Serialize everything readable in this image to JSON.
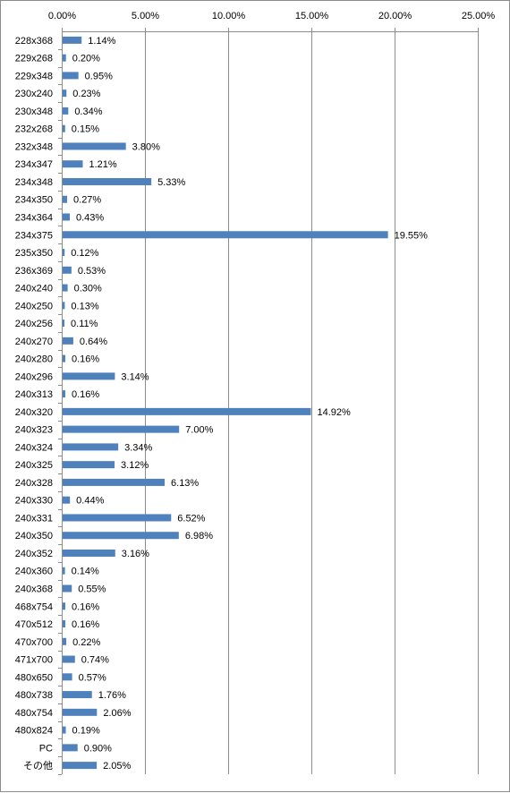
{
  "chart_data": {
    "type": "bar",
    "orientation": "horizontal",
    "xlim": [
      0,
      25
    ],
    "x_tick_values": [
      0,
      5,
      10,
      15,
      20,
      25
    ],
    "x_tick_labels": [
      "0.00%",
      "5.00%",
      "10.00%",
      "15.00%",
      "20.00%",
      "25.00%"
    ],
    "x_axis_position": "top",
    "grid": true,
    "legend": "none",
    "bar_color": "#4f81bd",
    "categories": [
      "228x368",
      "229x268",
      "229x348",
      "230x240",
      "230x348",
      "232x268",
      "232x348",
      "234x347",
      "234x348",
      "234x350",
      "234x364",
      "234x375",
      "235x350",
      "236x369",
      "240x240",
      "240x250",
      "240x256",
      "240x270",
      "240x280",
      "240x296",
      "240x313",
      "240x320",
      "240x323",
      "240x324",
      "240x325",
      "240x328",
      "240x330",
      "240x331",
      "240x350",
      "240x352",
      "240x360",
      "240x368",
      "468x754",
      "470x512",
      "470x700",
      "471x700",
      "480x650",
      "480x738",
      "480x754",
      "480x824",
      "PC",
      "その他"
    ],
    "values": [
      1.14,
      0.2,
      0.95,
      0.23,
      0.34,
      0.15,
      3.8,
      1.21,
      5.33,
      0.27,
      0.43,
      19.55,
      0.12,
      0.53,
      0.3,
      0.13,
      0.11,
      0.64,
      0.16,
      3.14,
      0.16,
      14.92,
      7.0,
      3.34,
      3.12,
      6.13,
      0.44,
      6.52,
      6.98,
      3.16,
      0.14,
      0.55,
      0.16,
      0.16,
      0.22,
      0.74,
      0.57,
      1.76,
      2.06,
      0.19,
      0.9,
      2.05
    ],
    "data_labels": [
      "1.14%",
      "0.20%",
      "0.95%",
      "0.23%",
      "0.34%",
      "0.15%",
      "3.80%",
      "1.21%",
      "5.33%",
      "0.27%",
      "0.43%",
      "19.55%",
      "0.12%",
      "0.53%",
      "0.30%",
      "0.13%",
      "0.11%",
      "0.64%",
      "0.16%",
      "3.14%",
      "0.16%",
      "14.92%",
      "7.00%",
      "3.34%",
      "3.12%",
      "6.13%",
      "0.44%",
      "6.52%",
      "6.98%",
      "3.16%",
      "0.14%",
      "0.55%",
      "0.16%",
      "0.16%",
      "0.22%",
      "0.74%",
      "0.57%",
      "1.76%",
      "2.06%",
      "0.19%",
      "0.90%",
      "2.05%"
    ]
  }
}
